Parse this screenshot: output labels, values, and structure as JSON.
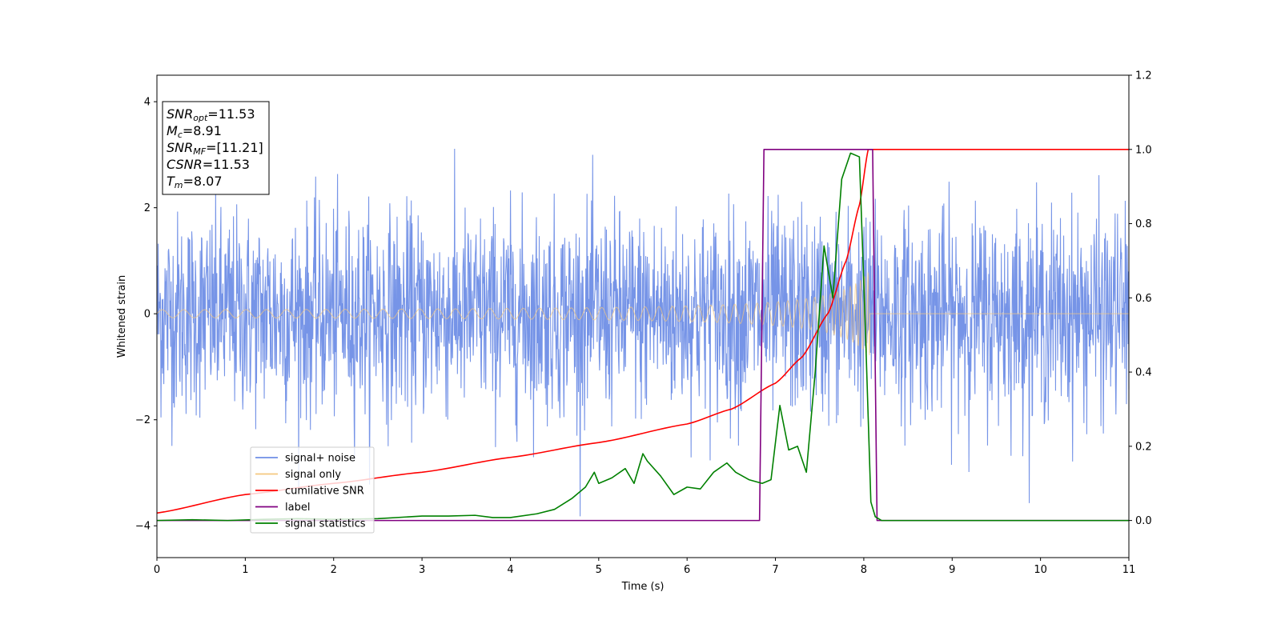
{
  "chart_data": {
    "type": "line",
    "xlabel": "Time (s)",
    "ylabel": "Whitened strain",
    "xlim": [
      0,
      11
    ],
    "ylim_left": [
      -4.6,
      4.5
    ],
    "ylim_right": [
      -0.1,
      1.2
    ],
    "x_ticks": [
      "0",
      "1",
      "2",
      "3",
      "4",
      "5",
      "6",
      "7",
      "8",
      "9",
      "10",
      "11"
    ],
    "y_ticks_left": [
      "−4",
      "−2",
      "0",
      "2",
      "4"
    ],
    "y_ticks_right": [
      "0.0",
      "0.2",
      "0.4",
      "0.6",
      "0.8",
      "1.0",
      "1.2"
    ],
    "grid": false,
    "legend_position": "lower-left",
    "colors": {
      "signal_noise": "#6f8ee6",
      "signal_only": "#f5c77e",
      "cumulative_snr": "#ff0000",
      "label": "#800080",
      "signal_statistics": "#008000"
    },
    "series": [
      {
        "name": "signal+ noise",
        "axis": "left",
        "description_type": "noise",
        "amplitude_typical": 1.6,
        "x_range": [
          0,
          11
        ]
      },
      {
        "name": "signal only",
        "axis": "left",
        "description_type": "chirp",
        "x_range": [
          0,
          8.07
        ],
        "amplitude_start": 0.05,
        "amplitude_end": 0.8
      },
      {
        "name": "cumilative SNR",
        "axis": "right",
        "x": [
          0,
          1,
          2,
          3,
          4,
          5,
          6,
          6.5,
          7,
          7.3,
          7.6,
          7.8,
          7.95,
          8.05,
          11
        ],
        "y": [
          0.02,
          0.07,
          0.1,
          0.13,
          0.17,
          0.21,
          0.26,
          0.3,
          0.37,
          0.44,
          0.56,
          0.7,
          0.85,
          1.0,
          1.0
        ]
      },
      {
        "name": "label",
        "axis": "right",
        "x": [
          0,
          6.82,
          6.87,
          8.1,
          8.15,
          11
        ],
        "y": [
          0.0,
          0.0,
          1.0,
          1.0,
          0.0,
          0.0
        ]
      },
      {
        "name": "signal statistics",
        "axis": "right",
        "x": [
          0,
          0.4,
          0.8,
          1.2,
          1.6,
          2.0,
          2.5,
          3.0,
          3.3,
          3.6,
          3.8,
          4.0,
          4.3,
          4.5,
          4.7,
          4.85,
          4.95,
          5.0,
          5.15,
          5.3,
          5.4,
          5.5,
          5.55,
          5.7,
          5.85,
          6.0,
          6.15,
          6.3,
          6.45,
          6.55,
          6.7,
          6.85,
          6.95,
          7.05,
          7.15,
          7.25,
          7.35,
          7.45,
          7.55,
          7.65,
          7.75,
          7.85,
          7.95,
          8.02,
          8.08,
          8.13,
          8.2,
          9,
          11
        ],
        "y": [
          0.0,
          0.002,
          0.0,
          0.003,
          0.005,
          0.003,
          0.005,
          0.012,
          0.012,
          0.014,
          0.008,
          0.008,
          0.018,
          0.03,
          0.06,
          0.09,
          0.13,
          0.1,
          0.115,
          0.14,
          0.1,
          0.18,
          0.16,
          0.12,
          0.07,
          0.09,
          0.085,
          0.13,
          0.155,
          0.13,
          0.11,
          0.1,
          0.11,
          0.31,
          0.19,
          0.2,
          0.13,
          0.4,
          0.74,
          0.6,
          0.92,
          0.99,
          0.98,
          0.5,
          0.05,
          0.01,
          0.0,
          0.0,
          0.0
        ]
      }
    ],
    "annotation": {
      "lines": [
        {
          "main": "SNR",
          "sub": "opt",
          "value": "=11.53"
        },
        {
          "main": "M",
          "sub": "c",
          "value": "=8.91"
        },
        {
          "main": "SNR",
          "sub": "MF",
          "value": "=[11.21]"
        },
        {
          "main": "CSNR",
          "sub": "",
          "value": "=11.53"
        },
        {
          "main": "T",
          "sub": "m",
          "value": "=8.07"
        }
      ]
    },
    "legend": [
      "signal+ noise",
      "signal only",
      "cumilative SNR",
      "label",
      "signal statistics"
    ]
  }
}
